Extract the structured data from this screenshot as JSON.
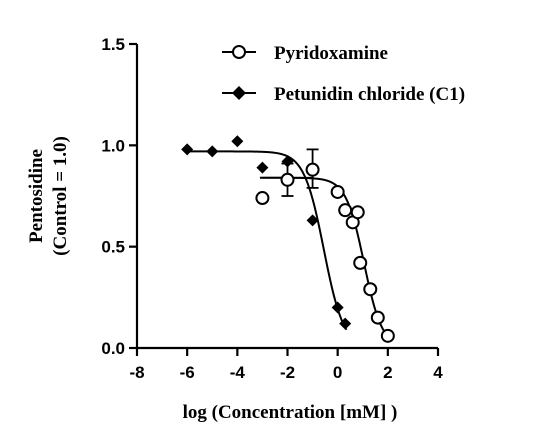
{
  "chart_data": {
    "type": "scatter",
    "title": "",
    "xlabel": "log (Concentration [mM] )",
    "ylabel_lines": [
      "Pentosidine",
      "(Control = 1.0)"
    ],
    "xlim": [
      -8,
      4
    ],
    "ylim": [
      0,
      1.5
    ],
    "xticks": [
      -8,
      -6,
      -4,
      -2,
      0,
      2,
      4
    ],
    "xtick_labels": [
      "-8",
      "-6",
      "-4",
      "-2",
      "0",
      "2",
      "4"
    ],
    "yticks": [
      0,
      0.5,
      1.0,
      1.5
    ],
    "ytick_labels": [
      "0.0",
      "0.5",
      "1.0",
      "1.5"
    ],
    "grid": false,
    "legend_position": "top-right",
    "series": [
      {
        "name": "Pyridoxamine",
        "marker": "open-circle",
        "x": [
          -3,
          -2,
          -1,
          0,
          0.3,
          0.6,
          0.9,
          0.8,
          1.3,
          1.6,
          2.0
        ],
        "y": [
          0.74,
          0.83,
          0.88,
          0.77,
          0.68,
          0.62,
          0.42,
          0.67,
          0.29,
          0.15,
          0.06
        ],
        "error": [
          0,
          0,
          0,
          0,
          0,
          0,
          0,
          0,
          0,
          0,
          0
        ],
        "fit": {
          "top": 0.84,
          "bottom": 0.0,
          "log_ic50": 1.05,
          "hill": -1.2
        }
      },
      {
        "name": "Petunidin chloride (C1)",
        "marker": "filled-diamond",
        "x": [
          -6,
          -5,
          -4,
          -3,
          -2,
          -1,
          0,
          0.3
        ],
        "y": [
          0.98,
          0.97,
          1.02,
          0.89,
          0.92,
          0.63,
          0.2,
          0.12
        ],
        "fit": {
          "top": 0.97,
          "bottom": 0.0,
          "log_ic50": -0.55,
          "hill": -1.1
        }
      }
    ],
    "error_bars": [
      {
        "x": -1,
        "y": 0.88,
        "low": 0.79,
        "high": 0.98
      },
      {
        "x": -2,
        "y": 0.83,
        "low": 0.75,
        "high": 0.91
      }
    ],
    "horizontal_error": {
      "y": 0.84,
      "x_low": -3,
      "x_high": -1
    }
  }
}
